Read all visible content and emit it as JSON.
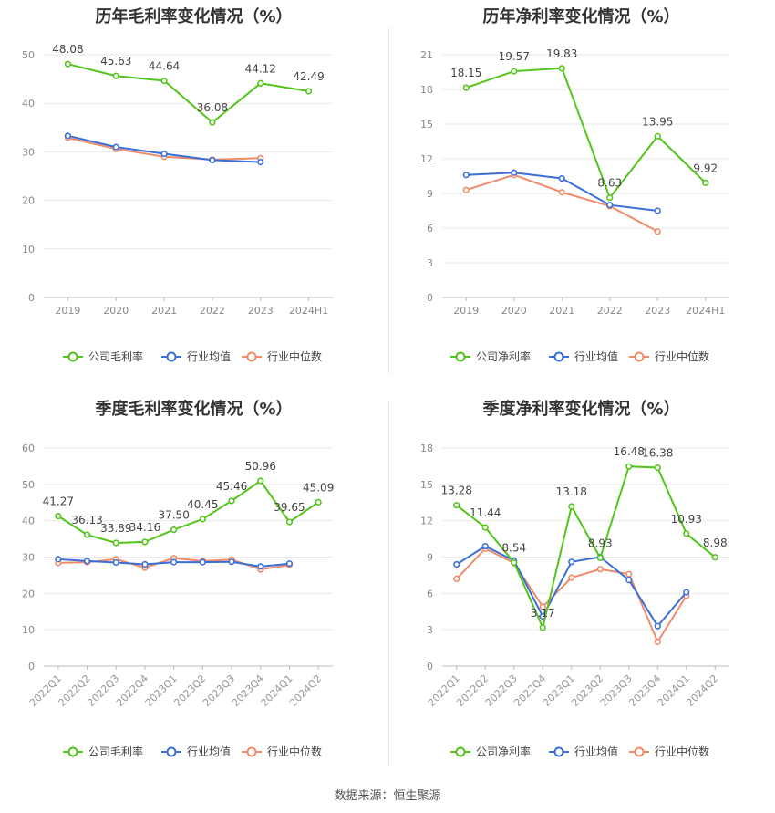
{
  "source_label": "数据来源：恒生聚源",
  "chart_data": [
    {
      "id": "p1",
      "type": "line",
      "title": "历年毛利率变化情况（%）",
      "categories": [
        "2019",
        "2020",
        "2021",
        "2022",
        "2023",
        "2024H1"
      ],
      "ylim": [
        0,
        50
      ],
      "yticks": [
        0,
        10,
        20,
        30,
        40,
        50
      ],
      "grid": true,
      "legend_position": "bottom",
      "series": [
        {
          "name": "公司毛利率",
          "color": "#52c41a",
          "values": [
            48.08,
            45.63,
            44.64,
            36.08,
            44.12,
            42.49
          ],
          "labels": [
            "48.08",
            "45.63",
            "44.64",
            "36.08",
            "44.12",
            "42.49"
          ]
        },
        {
          "name": "行业均值",
          "color": "#3a6fd8",
          "values": [
            33.3,
            31.0,
            29.6,
            28.3,
            27.9,
            null
          ]
        },
        {
          "name": "行业中位数",
          "color": "#f08b6a",
          "values": [
            32.9,
            30.6,
            29.0,
            28.4,
            28.7,
            null
          ]
        }
      ]
    },
    {
      "id": "p2",
      "type": "line",
      "title": "历年净利率变化情况（%）",
      "categories": [
        "2019",
        "2020",
        "2021",
        "2022",
        "2023",
        "2024H1"
      ],
      "ylim": [
        0,
        21
      ],
      "yticks": [
        0,
        3,
        6,
        9,
        12,
        15,
        18,
        21
      ],
      "grid": true,
      "legend_position": "bottom",
      "series": [
        {
          "name": "公司净利率",
          "color": "#52c41a",
          "values": [
            18.15,
            19.57,
            19.83,
            8.63,
            13.95,
            9.92
          ],
          "labels": [
            "18.15",
            "19.57",
            "19.83",
            "8.63",
            "13.95",
            "9.92"
          ]
        },
        {
          "name": "行业均值",
          "color": "#3a6fd8",
          "values": [
            10.6,
            10.8,
            10.3,
            8.0,
            7.5,
            null
          ]
        },
        {
          "name": "行业中位数",
          "color": "#f08b6a",
          "values": [
            9.3,
            10.6,
            9.1,
            7.9,
            5.7,
            null
          ]
        }
      ]
    },
    {
      "id": "p3",
      "type": "line",
      "title": "季度毛利率变化情况（%）",
      "categories": [
        "2022Q1",
        "2022Q2",
        "2022Q3",
        "2022Q4",
        "2023Q1",
        "2023Q2",
        "2023Q3",
        "2023Q4",
        "2024Q1",
        "2024Q2"
      ],
      "ylim": [
        0,
        60
      ],
      "yticks": [
        0,
        10,
        20,
        30,
        40,
        50,
        60
      ],
      "grid": true,
      "legend_position": "bottom",
      "series": [
        {
          "name": "公司毛利率",
          "color": "#52c41a",
          "values": [
            41.27,
            36.13,
            33.89,
            34.16,
            37.5,
            40.45,
            45.46,
            50.96,
            39.65,
            45.09
          ],
          "labels": [
            "41.27",
            "36.13",
            "33.89",
            "34.16",
            "37.50",
            "40.45",
            "45.46",
            "50.96",
            "39.65",
            "45.09"
          ]
        },
        {
          "name": "行业均值",
          "color": "#3a6fd8",
          "values": [
            29.4,
            28.9,
            28.5,
            28.0,
            28.6,
            28.6,
            28.7,
            27.4,
            28.2,
            null
          ]
        },
        {
          "name": "行业中位数",
          "color": "#f08b6a",
          "values": [
            28.4,
            28.6,
            29.4,
            27.1,
            29.7,
            28.9,
            29.3,
            26.6,
            27.8,
            null
          ]
        }
      ]
    },
    {
      "id": "p4",
      "type": "line",
      "title": "季度净利率变化情况（%）",
      "categories": [
        "2022Q1",
        "2022Q2",
        "2022Q3",
        "2022Q4",
        "2023Q1",
        "2023Q2",
        "2023Q3",
        "2023Q4",
        "2024Q1",
        "2024Q2"
      ],
      "ylim": [
        0,
        18
      ],
      "yticks": [
        0,
        3,
        6,
        9,
        12,
        15,
        18
      ],
      "grid": true,
      "legend_position": "bottom",
      "series": [
        {
          "name": "公司净利率",
          "color": "#52c41a",
          "values": [
            13.28,
            11.44,
            8.54,
            3.17,
            13.18,
            8.93,
            16.48,
            16.38,
            10.93,
            8.98
          ],
          "labels": [
            "13.28",
            "11.44",
            "8.54",
            "3.17",
            "13.18",
            "8.93",
            "16.48",
            "16.38",
            "10.93",
            "8.98"
          ]
        },
        {
          "name": "行业均值",
          "color": "#3a6fd8",
          "values": [
            8.4,
            9.9,
            8.7,
            4.1,
            8.6,
            9.0,
            7.1,
            3.3,
            6.1,
            null
          ]
        },
        {
          "name": "行业中位数",
          "color": "#f08b6a",
          "values": [
            7.2,
            9.7,
            8.5,
            4.9,
            7.3,
            8.0,
            7.6,
            2.0,
            5.8,
            null
          ]
        }
      ]
    }
  ]
}
